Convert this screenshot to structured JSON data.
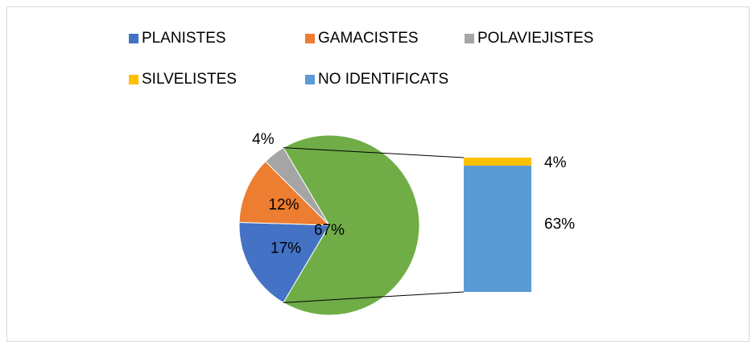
{
  "chart_data": {
    "type": "bar-of-pie",
    "categories": [
      "PLANISTES",
      "GAMACISTES",
      "POLAVIEJISTES",
      null
    ],
    "values": [
      17,
      12,
      4,
      67
    ],
    "value_labels": [
      "17%",
      "12%",
      "4%",
      "67%"
    ],
    "colors": [
      "#4472c4",
      "#ed7d31",
      "#a5a5a5",
      "#70ad47"
    ],
    "bar": {
      "categories": [
        "SILVELISTES",
        "NO IDENTIFICATS"
      ],
      "values": [
        4,
        63
      ],
      "value_labels": [
        "4%",
        "63%"
      ],
      "colors": [
        "#ffc000",
        "#5b9bd5"
      ]
    },
    "legend": "top"
  }
}
